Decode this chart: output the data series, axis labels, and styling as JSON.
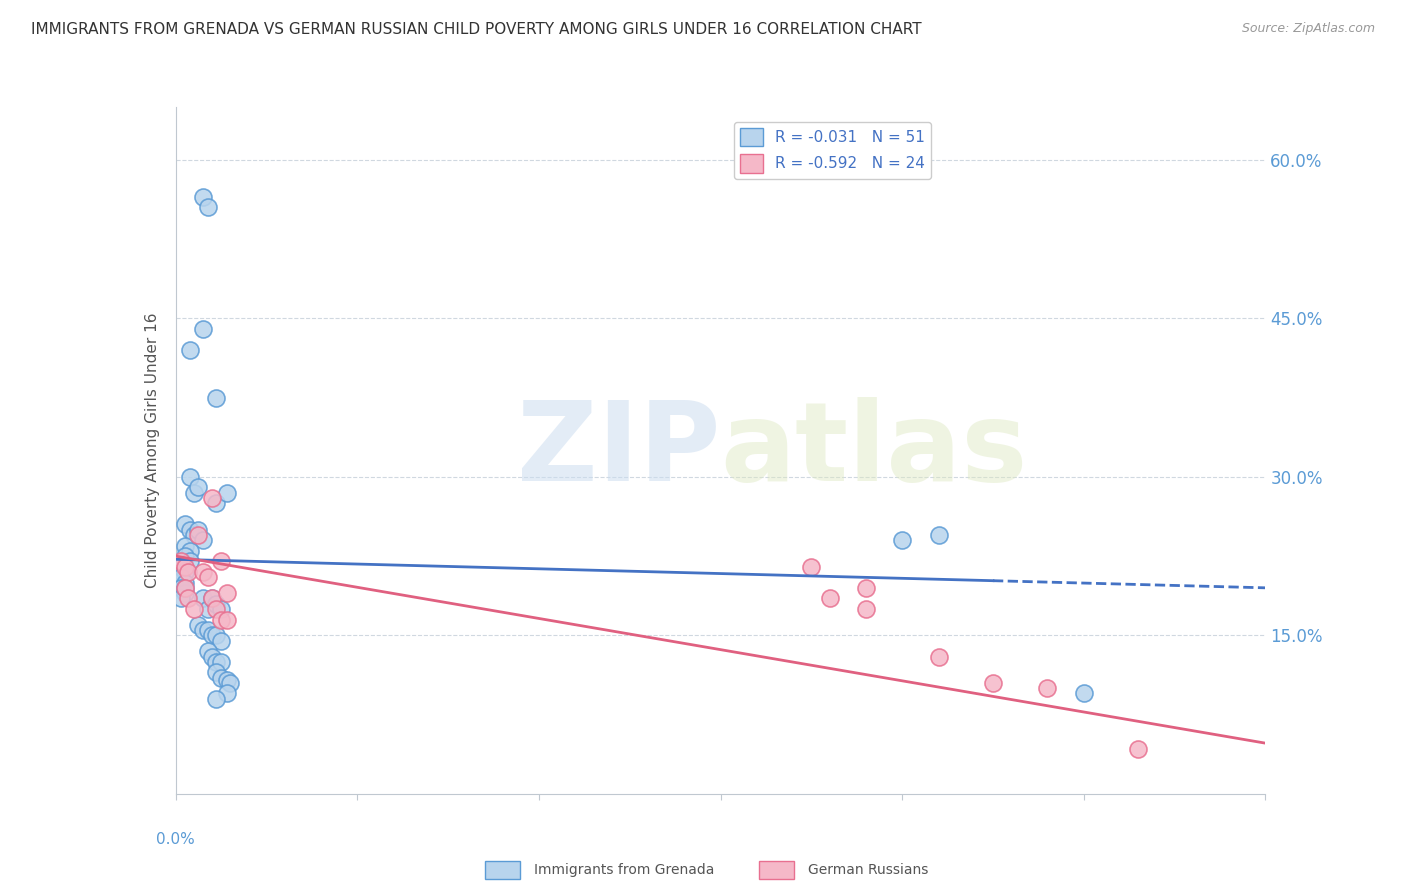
{
  "title": "IMMIGRANTS FROM GRENADA VS GERMAN RUSSIAN CHILD POVERTY AMONG GIRLS UNDER 16 CORRELATION CHART",
  "source": "Source: ZipAtlas.com",
  "ylabel": "Child Poverty Among Girls Under 16",
  "yticks": [
    0.15,
    0.3,
    0.45,
    0.6
  ],
  "ytick_labels": [
    "15.0%",
    "30.0%",
    "45.0%",
    "60.0%"
  ],
  "xmin": 0.0,
  "xmax": 0.06,
  "ymin": 0.0,
  "ymax": 0.65,
  "blue_label": "Immigrants from Grenada",
  "pink_label": "German Russians",
  "blue_R": "-0.031",
  "blue_N": "51",
  "pink_R": "-0.592",
  "pink_N": "24",
  "blue_fill": "#b8d4ed",
  "pink_fill": "#f5b8c8",
  "blue_edge": "#5b9bd5",
  "pink_edge": "#e87090",
  "blue_line": "#4472c4",
  "pink_line": "#e06080",
  "watermark_zip": "ZIP",
  "watermark_atlas": "atlas",
  "blue_dots": [
    [
      0.0015,
      0.565
    ],
    [
      0.0018,
      0.555
    ],
    [
      0.0008,
      0.42
    ],
    [
      0.0015,
      0.44
    ],
    [
      0.0022,
      0.375
    ],
    [
      0.0008,
      0.3
    ],
    [
      0.001,
      0.285
    ],
    [
      0.0012,
      0.29
    ],
    [
      0.0022,
      0.275
    ],
    [
      0.0028,
      0.285
    ],
    [
      0.0005,
      0.255
    ],
    [
      0.0008,
      0.25
    ],
    [
      0.001,
      0.245
    ],
    [
      0.0012,
      0.25
    ],
    [
      0.0015,
      0.24
    ],
    [
      0.0005,
      0.235
    ],
    [
      0.0008,
      0.23
    ],
    [
      0.0005,
      0.225
    ],
    [
      0.0008,
      0.22
    ],
    [
      0.0003,
      0.215
    ],
    [
      0.0005,
      0.21
    ],
    [
      0.0003,
      0.205
    ],
    [
      0.0005,
      0.2
    ],
    [
      0.0003,
      0.195
    ],
    [
      0.0005,
      0.19
    ],
    [
      0.0003,
      0.185
    ],
    [
      0.0005,
      0.195
    ],
    [
      0.0015,
      0.185
    ],
    [
      0.0018,
      0.175
    ],
    [
      0.002,
      0.185
    ],
    [
      0.0022,
      0.18
    ],
    [
      0.0025,
      0.175
    ],
    [
      0.0012,
      0.16
    ],
    [
      0.0015,
      0.155
    ],
    [
      0.0018,
      0.155
    ],
    [
      0.002,
      0.15
    ],
    [
      0.0022,
      0.15
    ],
    [
      0.0025,
      0.145
    ],
    [
      0.0018,
      0.135
    ],
    [
      0.002,
      0.13
    ],
    [
      0.0022,
      0.125
    ],
    [
      0.0025,
      0.125
    ],
    [
      0.0022,
      0.115
    ],
    [
      0.0025,
      0.11
    ],
    [
      0.0028,
      0.108
    ],
    [
      0.003,
      0.105
    ],
    [
      0.0028,
      0.095
    ],
    [
      0.0022,
      0.09
    ],
    [
      0.04,
      0.24
    ],
    [
      0.042,
      0.245
    ],
    [
      0.05,
      0.095
    ]
  ],
  "pink_dots": [
    [
      0.0003,
      0.22
    ],
    [
      0.0005,
      0.215
    ],
    [
      0.0007,
      0.21
    ],
    [
      0.0005,
      0.195
    ],
    [
      0.0007,
      0.185
    ],
    [
      0.001,
      0.175
    ],
    [
      0.0012,
      0.245
    ],
    [
      0.0015,
      0.21
    ],
    [
      0.0018,
      0.205
    ],
    [
      0.002,
      0.185
    ],
    [
      0.0022,
      0.175
    ],
    [
      0.0025,
      0.165
    ],
    [
      0.002,
      0.28
    ],
    [
      0.0025,
      0.22
    ],
    [
      0.0028,
      0.19
    ],
    [
      0.0028,
      0.165
    ],
    [
      0.035,
      0.215
    ],
    [
      0.036,
      0.185
    ],
    [
      0.038,
      0.195
    ],
    [
      0.038,
      0.175
    ],
    [
      0.042,
      0.13
    ],
    [
      0.045,
      0.105
    ],
    [
      0.048,
      0.1
    ],
    [
      0.053,
      0.042
    ]
  ],
  "blue_line_x": [
    0.0,
    0.06
  ],
  "blue_line_y": [
    0.222,
    0.195
  ],
  "pink_line_x": [
    0.0,
    0.06
  ],
  "pink_line_y": [
    0.225,
    0.048
  ]
}
